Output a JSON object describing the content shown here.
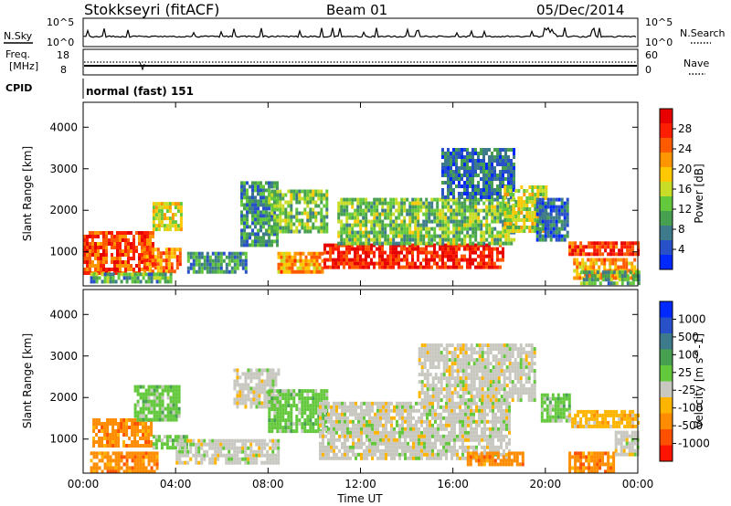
{
  "header": {
    "station": "Stokkseyri (fitACF)",
    "beam": "Beam 01",
    "date": "05/Dec/2014"
  },
  "nsky_panel": {
    "left_label": "N.Sky",
    "left_ticks": [
      "10^5",
      "10^0"
    ],
    "right_label": "N.Search",
    "right_ticks": [
      "10^5",
      "10^0"
    ]
  },
  "freq_panel": {
    "left_label_1": "Freq.",
    "left_label_2": "[MHz]",
    "left_ticks": [
      "18",
      "8"
    ],
    "right_label": "Nave",
    "right_ticks": [
      "60",
      "0"
    ]
  },
  "cpid_panel": {
    "label": "CPID",
    "mode": "normal (fast) 151"
  },
  "colors": {
    "power": [
      "#0028ff",
      "#2850c8",
      "#3c7a8c",
      "#46a050",
      "#64c83c",
      "#c8dc28",
      "#ffc800",
      "#ff9600",
      "#ff5a00",
      "#ff1e00",
      "#e60000"
    ],
    "velocity": [
      "#0028ff",
      "#2850c8",
      "#3c7a8c",
      "#46a050",
      "#64c83c",
      "#c8c8c0",
      "#ffb400",
      "#ff8c00",
      "#ff5000",
      "#ff1400"
    ]
  },
  "chart_data": [
    {
      "type": "heatmap",
      "title": "",
      "xlabel": "Time UT",
      "ylabel": "Slant Range [km]",
      "xticks": [
        "00:00",
        "04:00",
        "08:00",
        "12:00",
        "16:00",
        "20:00",
        "00:00"
      ],
      "yticks": [
        "1000",
        "2000",
        "3000",
        "4000"
      ],
      "xlim_hours": [
        0,
        24
      ],
      "ylim_km": [
        180,
        4600
      ],
      "colorbar": {
        "label": "Power [dB]",
        "ticks": [
          "4",
          "8",
          "12",
          "16",
          "20",
          "24",
          "28"
        ],
        "range": [
          0,
          30
        ]
      },
      "regions": [
        {
          "t0": 0.0,
          "t1": 3.0,
          "r0": 500,
          "r1": 1500,
          "v": 24
        },
        {
          "t0": 3.0,
          "t1": 4.2,
          "r0": 1500,
          "r1": 2200,
          "v": 16
        },
        {
          "t0": 2.6,
          "t1": 4.2,
          "r0": 500,
          "r1": 1100,
          "v": 22
        },
        {
          "t0": 0.3,
          "t1": 3.8,
          "r0": 250,
          "r1": 500,
          "v": 10
        },
        {
          "t0": 4.5,
          "t1": 7.0,
          "r0": 500,
          "r1": 1000,
          "v": 8
        },
        {
          "t0": 6.8,
          "t1": 8.4,
          "r0": 1200,
          "r1": 2700,
          "v": 8
        },
        {
          "t0": 8.0,
          "t1": 10.5,
          "r0": 1500,
          "r1": 2500,
          "v": 12
        },
        {
          "t0": 8.4,
          "t1": 10.4,
          "r0": 500,
          "r1": 1000,
          "v": 20
        },
        {
          "t0": 10.4,
          "t1": 18.2,
          "r0": 600,
          "r1": 1200,
          "v": 27
        },
        {
          "t0": 11.0,
          "t1": 18.6,
          "r0": 1200,
          "r1": 2300,
          "v": 12
        },
        {
          "t0": 15.5,
          "t1": 18.6,
          "r0": 2300,
          "r1": 3500,
          "v": 6
        },
        {
          "t0": 18.2,
          "t1": 20.0,
          "r0": 1500,
          "r1": 2600,
          "v": 15
        },
        {
          "t0": 19.6,
          "t1": 21.0,
          "r0": 1300,
          "r1": 2300,
          "v": 6
        },
        {
          "t0": 21.0,
          "t1": 24.0,
          "r0": 950,
          "r1": 1250,
          "v": 26
        },
        {
          "t0": 21.2,
          "t1": 24.0,
          "r0": 350,
          "r1": 850,
          "v": 20
        },
        {
          "t0": 21.5,
          "t1": 24.0,
          "r0": 250,
          "r1": 550,
          "v": 10
        }
      ]
    },
    {
      "type": "heatmap",
      "title": "",
      "xlabel": "Time UT",
      "ylabel": "Slant Range [km]",
      "xticks": [
        "00:00",
        "04:00",
        "08:00",
        "12:00",
        "16:00",
        "20:00",
        "00:00"
      ],
      "yticks": [
        "1000",
        "2000",
        "3000",
        "4000"
      ],
      "xlim_hours": [
        0,
        24
      ],
      "ylim_km": [
        180,
        4600
      ],
      "colorbar": {
        "label": "Velocity [m s^-1]",
        "ticks": [
          "1000",
          "500",
          "100",
          "25",
          "-25",
          "-100",
          "-500",
          "-1000"
        ]
      },
      "regions": [
        {
          "t0": 0.4,
          "t1": 3.0,
          "r0": 800,
          "r1": 1500,
          "cls": 7
        },
        {
          "t0": 0.3,
          "t1": 3.2,
          "r0": 250,
          "r1": 700,
          "cls": 7
        },
        {
          "t0": 2.2,
          "t1": 4.2,
          "r0": 1500,
          "r1": 2300,
          "cls": 4
        },
        {
          "t0": 3.0,
          "t1": 4.5,
          "r0": 800,
          "r1": 1100,
          "cls": 4
        },
        {
          "t0": 4.0,
          "t1": 8.5,
          "r0": 400,
          "r1": 1000,
          "cls": 5
        },
        {
          "t0": 6.5,
          "t1": 8.4,
          "r0": 1800,
          "r1": 2700,
          "cls": 5
        },
        {
          "t0": 8.0,
          "t1": 10.5,
          "r0": 1200,
          "r1": 2200,
          "cls": 4
        },
        {
          "t0": 10.2,
          "t1": 18.5,
          "r0": 500,
          "r1": 1900,
          "cls": 5
        },
        {
          "t0": 14.5,
          "t1": 19.6,
          "r0": 1900,
          "r1": 3300,
          "cls": 5
        },
        {
          "t0": 16.6,
          "t1": 19.0,
          "r0": 400,
          "r1": 700,
          "cls": 7
        },
        {
          "t0": 19.8,
          "t1": 21.0,
          "r0": 1400,
          "r1": 2100,
          "cls": 4
        },
        {
          "t0": 21.0,
          "t1": 24.0,
          "r0": 1300,
          "r1": 1700,
          "cls": 6
        },
        {
          "t0": 21.0,
          "t1": 23.0,
          "r0": 250,
          "r1": 700,
          "cls": 7
        },
        {
          "t0": 23.0,
          "t1": 24.0,
          "r0": 600,
          "r1": 1200,
          "cls": 5
        }
      ]
    }
  ]
}
